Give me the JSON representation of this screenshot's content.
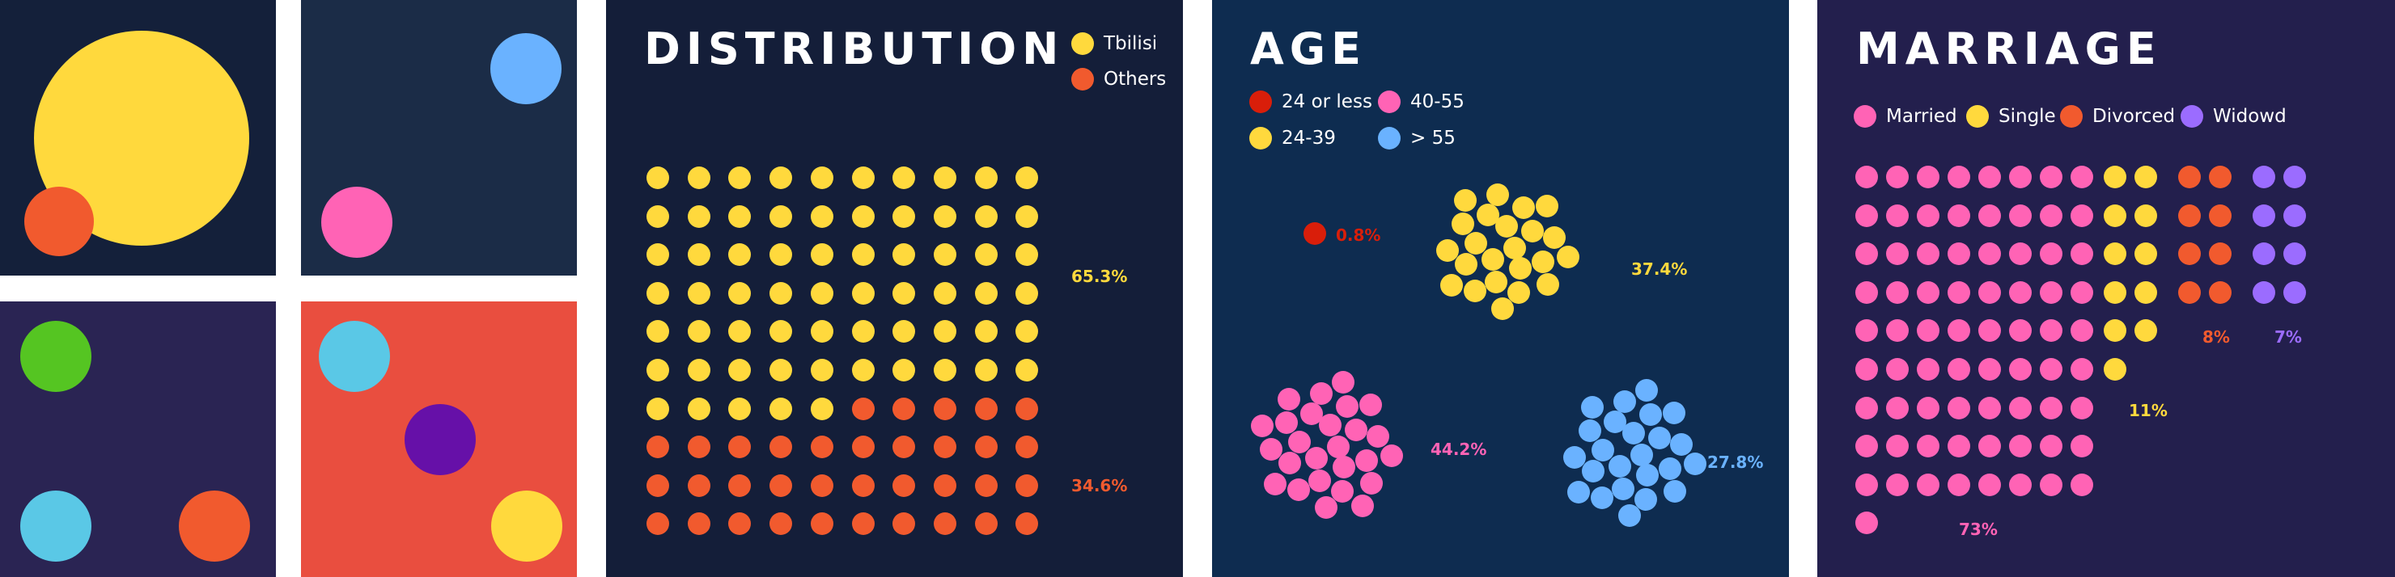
{
  "colors": {
    "yellow": "#ffd93d",
    "orange": "#f15a2e",
    "red": "#d91e0a",
    "pink": "#ff63b5",
    "blue": "#6ab2ff",
    "purple": "#9b6cff",
    "white": "#ffffff",
    "navy": "#14203a",
    "slate": "#1b2c47",
    "indigo": "#2a2453",
    "coral": "#e94e3f",
    "dist_bg": "#141e39",
    "age_bg": "#0e2c50",
    "marriage_bg": "#231f4d"
  },
  "palette": {
    "tiles": [
      {
        "name": "tile-navy",
        "background": "#14203a",
        "circles": [
          "#ffd93d",
          "#f15a2e"
        ]
      },
      {
        "name": "tile-slate",
        "background": "#1b2c47",
        "circles": [
          "#6ab2ff",
          "#ff63b5"
        ]
      },
      {
        "name": "tile-indigo",
        "background": "#2a2453",
        "circles": [
          "#55c522",
          "#5ac8e6",
          "#f15a2e"
        ]
      },
      {
        "name": "tile-coral",
        "background": "#e94e3f",
        "circles": [
          "#5ac8e6",
          "#6610a8",
          "#ffd93d"
        ]
      }
    ]
  },
  "chart_data": [
    {
      "type": "waffle",
      "title": "DISTRIBUTION",
      "grid": {
        "rows": 10,
        "cols": 10
      },
      "series": [
        {
          "name": "Tbilisi",
          "value": 65.3,
          "label": "65.3%",
          "dots": 65,
          "color": "#ffd93d"
        },
        {
          "name": "Others",
          "value": 34.6,
          "label": "34.6%",
          "dots": 35,
          "color": "#f15a2e"
        }
      ],
      "legend": "top-right"
    },
    {
      "type": "bubble-cluster",
      "title": "AGE",
      "series": [
        {
          "name": "24 or less",
          "value": 0.8,
          "label": "0.8%",
          "dots": 1,
          "color": "#d91e0a"
        },
        {
          "name": "40-55",
          "value": 44.2,
          "label": "44.2%",
          "dots": 26,
          "color": "#ff63b5"
        },
        {
          "name": "24-39",
          "value": 37.4,
          "label": "37.4%",
          "dots": 23,
          "color": "#ffd93d"
        },
        {
          "name": "> 55",
          "value": 27.8,
          "label": "27.8%",
          "dots": 24,
          "color": "#6ab2ff"
        }
      ],
      "legend": "top-left"
    },
    {
      "type": "waffle-columns",
      "title": "MARRIAGE",
      "series": [
        {
          "name": "Married",
          "value": 73,
          "label": "73%",
          "dots": 73,
          "cols": 8,
          "color": "#ff63b5"
        },
        {
          "name": "Single",
          "value": 11,
          "label": "11%",
          "dots": 11,
          "cols": 2,
          "color": "#ffd93d"
        },
        {
          "name": "Divorced",
          "value": 8,
          "label": "8%",
          "dots": 8,
          "cols": 2,
          "color": "#f15a2e"
        },
        {
          "name": "Widowd",
          "value": 7,
          "label": "7%",
          "dots": 8,
          "cols": 2,
          "color": "#9b6cff"
        }
      ],
      "legend": "top"
    }
  ]
}
